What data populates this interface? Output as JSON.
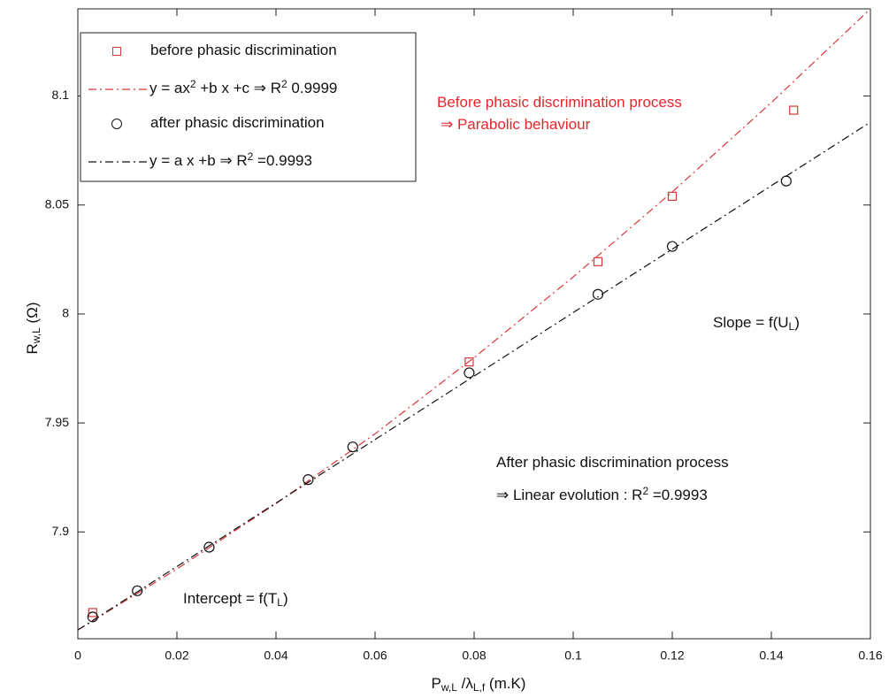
{
  "chart_data": {
    "type": "scatter",
    "xlabel": {
      "parts": [
        "P",
        "w,L",
        " /λ",
        "L,f",
        " (m.K)"
      ],
      "shift": [
        "",
        "sub",
        "",
        "sub",
        ""
      ]
    },
    "ylabel": {
      "parts": [
        "R",
        "w,L",
        "  (Ω)"
      ],
      "shift": [
        "",
        "sub",
        ""
      ]
    },
    "xlim": [
      0,
      0.16
    ],
    "ylim": [
      7.851,
      8.14
    ],
    "xticks": [
      0,
      0.02,
      0.04,
      0.06,
      0.08,
      0.1,
      0.12,
      0.14,
      0.16
    ],
    "yticks": [
      7.9,
      7.95,
      8,
      8.05,
      8.1
    ],
    "series": [
      {
        "name": {
          "parts": [
            "before phasic discrimination"
          ],
          "shift": [
            ""
          ]
        },
        "color": "#d9363a",
        "style": "square",
        "x": [
          0.003,
          0.079,
          0.105,
          0.12,
          0.1445
        ],
        "values": [
          7.863,
          7.978,
          8.024,
          8.054,
          8.0935
        ]
      },
      {
        "name": {
          "parts": [
            "y = ax",
            "2",
            " +b x +c ⇒ R",
            "2",
            " 0.9999"
          ],
          "shift": [
            "",
            "sup",
            "",
            "sup",
            ""
          ]
        },
        "color": "#d9363a",
        "style": "dashdot",
        "x": [
          0,
          0.02,
          0.04,
          0.06,
          0.08,
          0.1,
          0.12,
          0.14,
          0.16
        ],
        "values": [
          7.855,
          7.883,
          7.913,
          7.945,
          7.98,
          8.017,
          8.056,
          8.097,
          8.14
        ]
      },
      {
        "name": {
          "parts": [
            "after phasic discrimination"
          ],
          "shift": [
            ""
          ]
        },
        "color": "#111111",
        "style": "circle",
        "x": [
          0.003,
          0.012,
          0.0265,
          0.0465,
          0.0555,
          0.079,
          0.105,
          0.12,
          0.143
        ],
        "values": [
          7.861,
          7.873,
          7.893,
          7.924,
          7.939,
          7.973,
          8.009,
          8.031,
          8.061
        ]
      },
      {
        "name": {
          "parts": [
            "y = a x +b ⇒  R",
            "2",
            " =0.9993"
          ],
          "shift": [
            "",
            "sup",
            ""
          ]
        },
        "color": "#111111",
        "style": "dashdot",
        "x": [
          0,
          0.16
        ],
        "values": [
          7.855,
          8.088
        ]
      }
    ],
    "annotations": [
      {
        "parts": [
          "Before phasic discrimination process"
        ],
        "shift": [
          ""
        ],
        "color": "#e8262a"
      },
      {
        "parts": [
          "⇒ Parabolic behaviour"
        ],
        "shift": [
          ""
        ],
        "color": "#e8262a"
      },
      {
        "parts": [
          "Slope = f(U",
          "L",
          ")"
        ],
        "shift": [
          "",
          "sub",
          ""
        ],
        "color": "#111111"
      },
      {
        "parts": [
          "After phasic discrimination process"
        ],
        "shift": [
          ""
        ],
        "color": "#111111"
      },
      {
        "parts": [
          "⇒  Linear evolution : R",
          "2",
          " =0.9993"
        ],
        "shift": [
          "",
          "sup",
          ""
        ],
        "color": "#111111"
      },
      {
        "parts": [
          "Intercept = f(T",
          "L",
          ")"
        ],
        "shift": [
          "",
          "sub",
          ""
        ],
        "color": "#111111"
      }
    ]
  }
}
